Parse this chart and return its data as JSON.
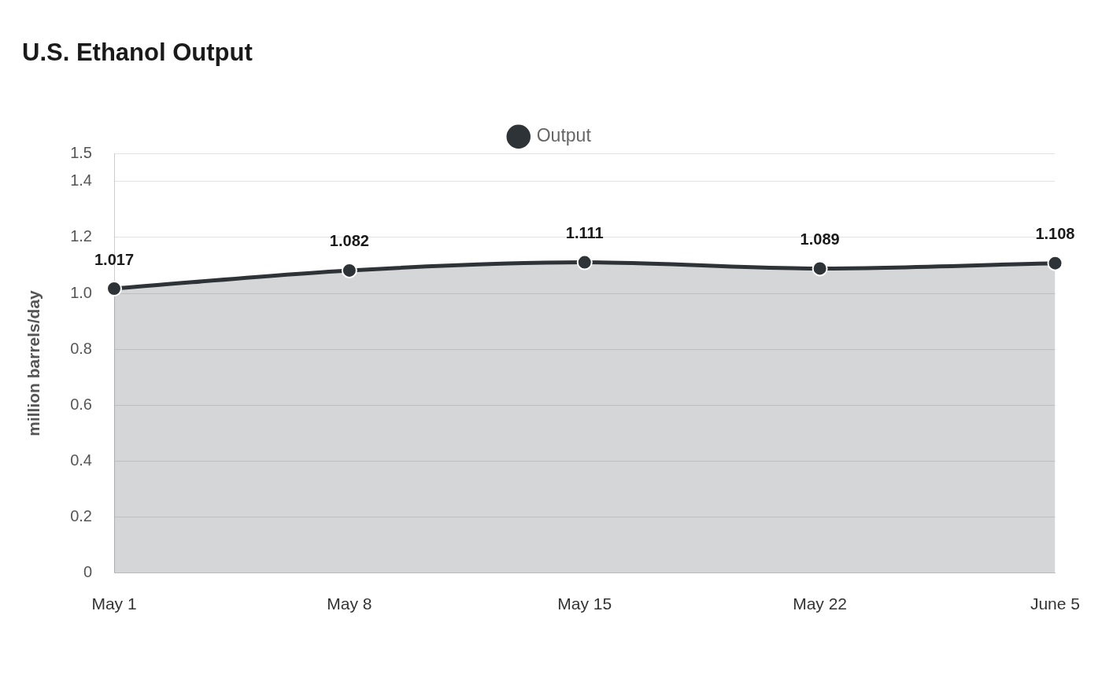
{
  "chart_data": {
    "type": "area",
    "title": "U.S. Ethanol Output",
    "ylabel": "million barrels/day",
    "categories": [
      "May 1",
      "May 8",
      "May 15",
      "May 22",
      "June 5"
    ],
    "series": [
      {
        "name": "Output",
        "color": "#2d3336",
        "values": [
          1.017,
          1.082,
          1.111,
          1.089,
          1.108
        ]
      }
    ],
    "ylim": [
      0,
      1.5
    ],
    "yticks": [
      0,
      0.2,
      0.4,
      0.6,
      0.8,
      {
        "value": 1,
        "label": "1.0"
      },
      1.2,
      1.4,
      1.5
    ],
    "grid": "y",
    "legend": "top",
    "marker": "circle",
    "line_style": "solid",
    "data_labels": true
  }
}
